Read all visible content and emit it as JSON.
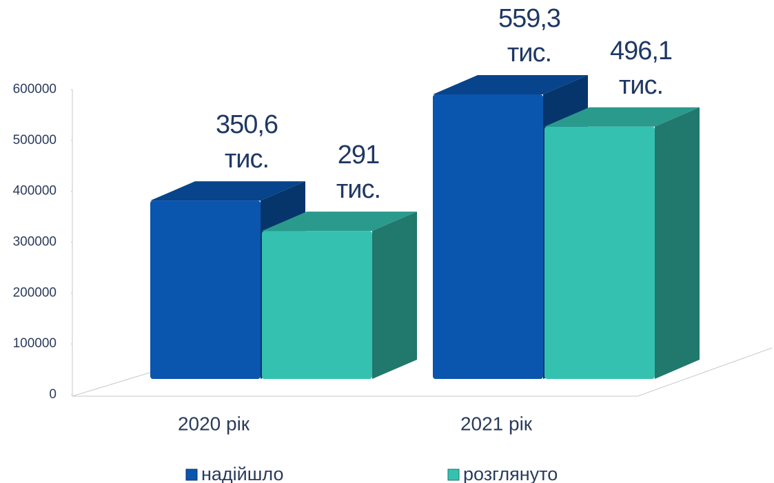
{
  "chart_data": {
    "type": "bar3d",
    "categories": [
      "2020 рік",
      "2021 рік"
    ],
    "series": [
      {
        "name": "надійшло",
        "color": "#0a55ae",
        "values": [
          350600,
          559300
        ],
        "value_labels": [
          "350,6 тис.",
          "559,3 тис."
        ]
      },
      {
        "name": "розглянуто",
        "color": "#35c1b0",
        "values": [
          291000,
          496100
        ],
        "value_labels": [
          "291 тис.",
          "496,1 тис."
        ]
      }
    ],
    "ylim": [
      0,
      600000
    ],
    "yticks": [
      0,
      100000,
      200000,
      300000,
      400000,
      500000,
      600000
    ],
    "legend": "bottom"
  }
}
